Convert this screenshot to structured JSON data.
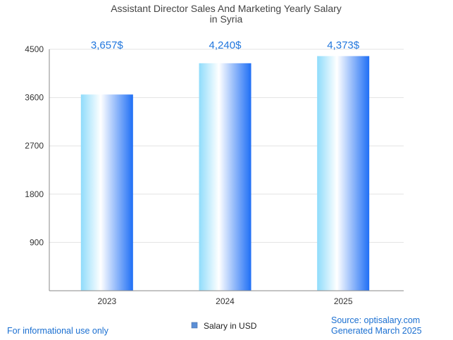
{
  "chart_data": {
    "type": "bar",
    "title_lines": [
      "Assistant Director Sales And Marketing Yearly Salary",
      "in Syria"
    ],
    "categories": [
      "2023",
      "2024",
      "2025"
    ],
    "values": [
      3657,
      4240,
      4373
    ],
    "data_labels": [
      "3,657$",
      "4,240$",
      "4,373$"
    ],
    "y_ticks": [
      900,
      1800,
      2700,
      3600,
      4500
    ],
    "y_tick_labels": [
      "900",
      "1800",
      "2700",
      "3600",
      "4500"
    ],
    "ylim": [
      0,
      4500
    ],
    "xlabel": "",
    "ylabel": "",
    "grid": true,
    "legend": {
      "label": "Salary in USD",
      "color": "#5b8fd6",
      "placement": "bottom-center"
    },
    "bar_gradient": [
      "#8fdcfb",
      "#ffffff",
      "#1f6ff5"
    ],
    "label_color": "#2277dd"
  },
  "footer": {
    "left_note": "For informational use only",
    "source": "Source: optisalary.com",
    "generated": "Generated March 2025"
  }
}
